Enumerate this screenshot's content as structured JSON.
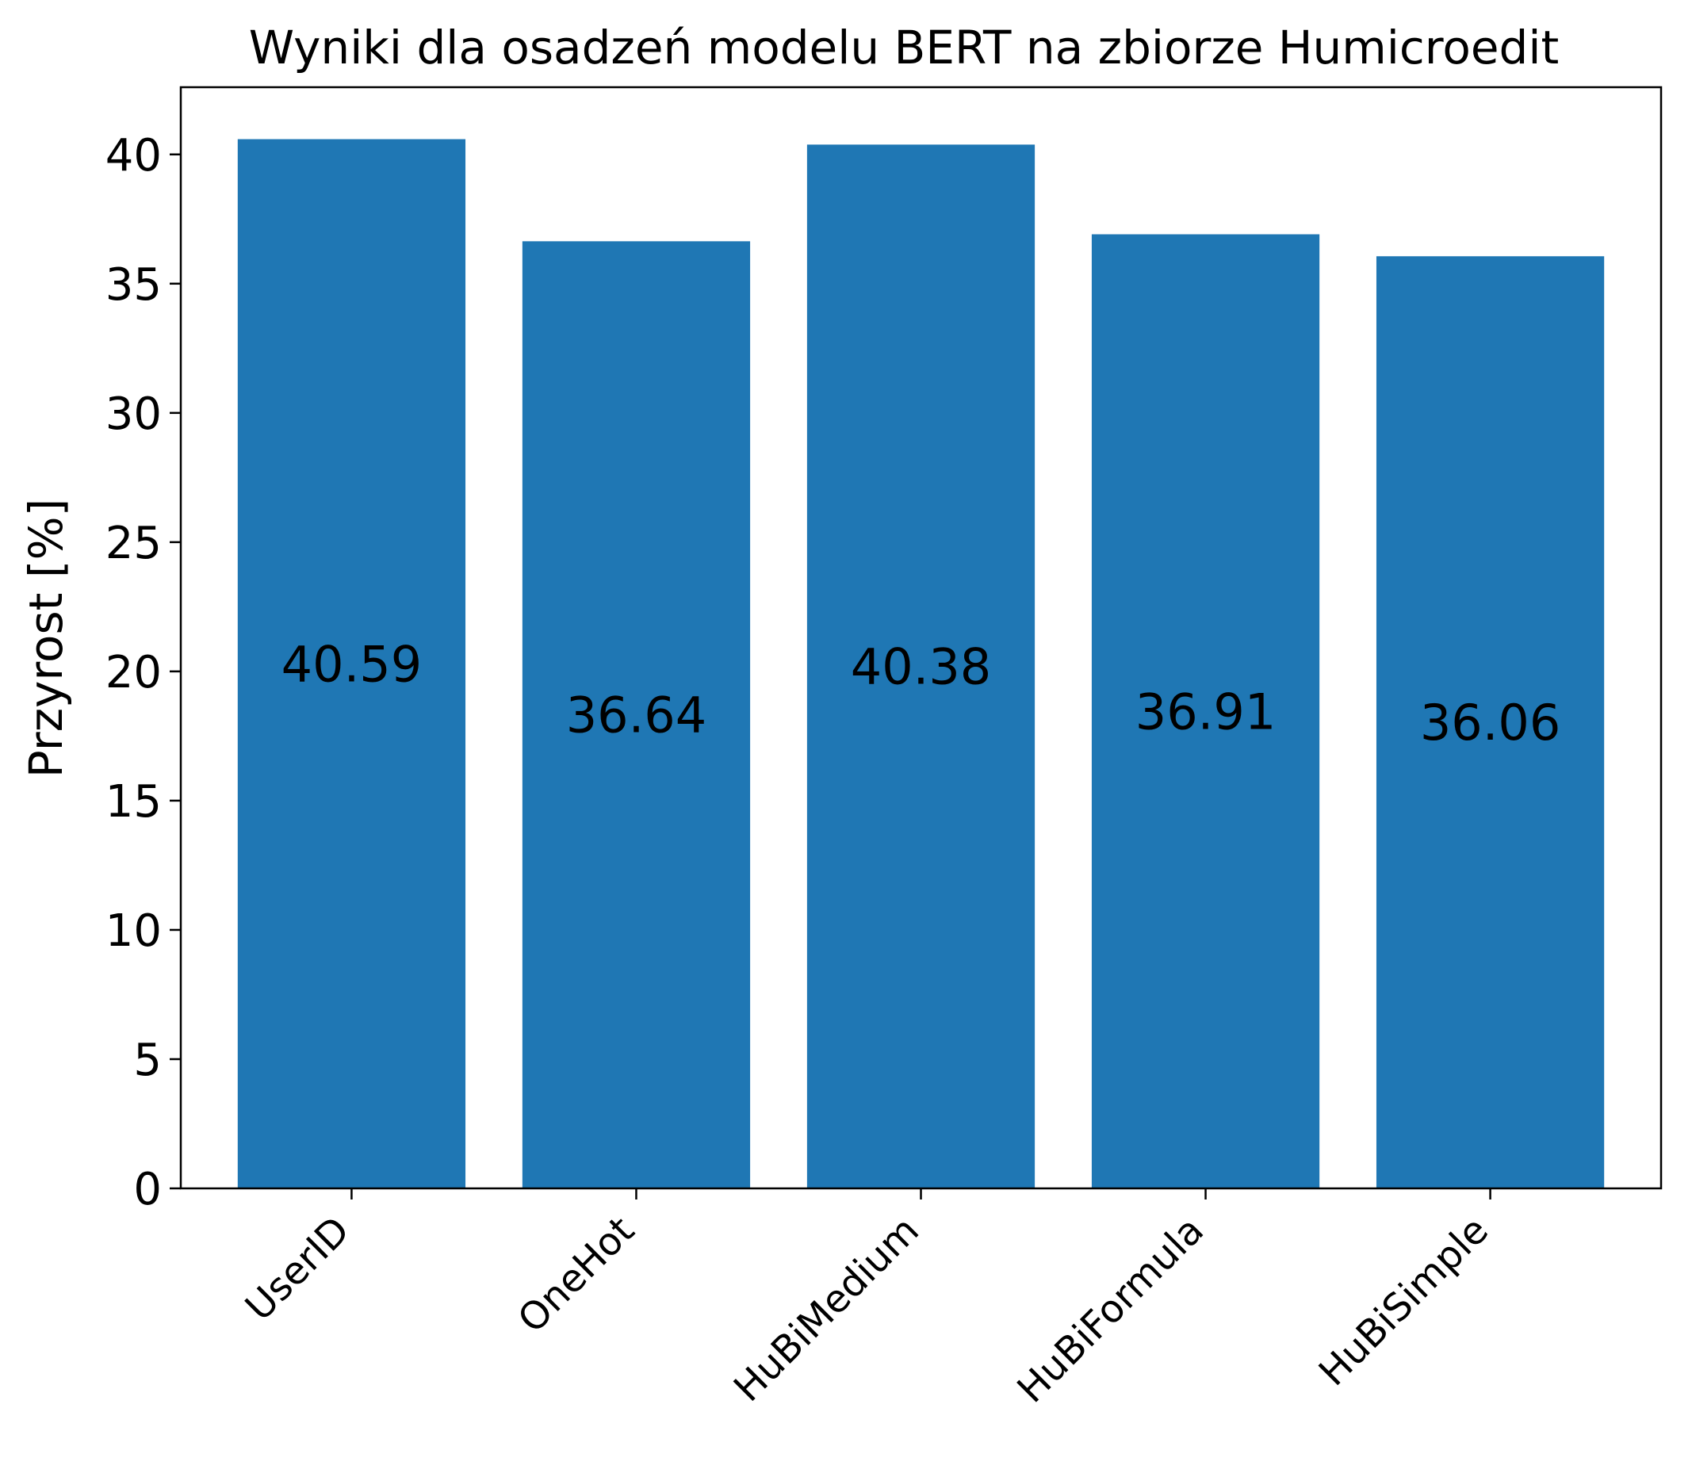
{
  "chart_data": {
    "type": "bar",
    "title": "Wyniki dla osadzeń modelu BERT na zbiorze Humicroedit",
    "xlabel": "",
    "ylabel": "Przyrost [%]",
    "categories": [
      "UserID",
      "OneHot",
      "HuBiMedium",
      "HuBiFormula",
      "HuBiSimple"
    ],
    "values": [
      40.59,
      36.64,
      40.38,
      36.91,
      36.06
    ],
    "value_labels": [
      "40.59",
      "36.64",
      "40.38",
      "36.91",
      "36.06"
    ],
    "ylim": [
      0,
      42.6
    ],
    "yticks": [
      0,
      5,
      10,
      15,
      20,
      25,
      30,
      35,
      40
    ],
    "bar_color": "#1f77b4",
    "grid": false
  }
}
